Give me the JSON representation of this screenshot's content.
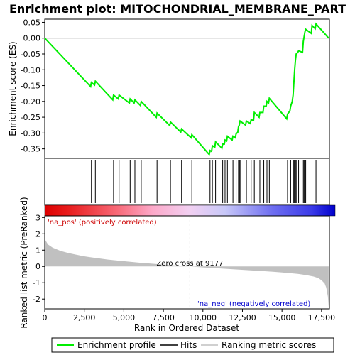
{
  "chart_data": {
    "type": "line",
    "title": "Enrichment plot: MITOCHONDRIAL_MEMBRANE_PART",
    "xlabel": "Rank in Ordered Dataset",
    "top_panel": {
      "ylabel": "Enrichment score (ES)",
      "ylim": [
        -0.38,
        0.06
      ],
      "yticks": [
        0.05,
        0.0,
        -0.05,
        -0.1,
        -0.15,
        -0.2,
        -0.25,
        -0.3,
        -0.35
      ],
      "ytick_labels": [
        "0.05",
        "0.00",
        "-0.05",
        "-0.10",
        "-0.15",
        "-0.20",
        "-0.25",
        "-0.30",
        "-0.35"
      ],
      "series": [
        {
          "name": "Enrichment profile",
          "color": "#00ee00",
          "x": [
            0,
            2900,
            2950,
            3150,
            3200,
            4300,
            4350,
            4650,
            4700,
            5350,
            5400,
            5650,
            5700,
            6050,
            6100,
            7050,
            7100,
            7900,
            7950,
            8600,
            8650,
            9250,
            9300,
            10400,
            10450,
            10550,
            10600,
            10750,
            10800,
            11200,
            11250,
            11350,
            11400,
            11500,
            11550,
            11850,
            11900,
            12050,
            12100,
            12200,
            12250,
            12300,
            12350,
            12700,
            12750,
            13000,
            13050,
            13200,
            13250,
            13550,
            13600,
            13800,
            13850,
            14000,
            14050,
            14150,
            14200,
            15300,
            15350,
            15500,
            15550,
            15650,
            15700,
            15750,
            15800,
            15850,
            15900,
            16000,
            16050,
            16300,
            16350,
            16450,
            16500,
            16850,
            16900,
            17100,
            17150,
            17950
          ],
          "y": [
            0.0,
            -0.153,
            -0.14,
            -0.148,
            -0.136,
            -0.195,
            -0.18,
            -0.192,
            -0.18,
            -0.205,
            -0.192,
            -0.205,
            -0.195,
            -0.213,
            -0.2,
            -0.25,
            -0.237,
            -0.276,
            -0.265,
            -0.297,
            -0.287,
            -0.315,
            -0.305,
            -0.368,
            -0.355,
            -0.358,
            -0.34,
            -0.345,
            -0.328,
            -0.348,
            -0.335,
            -0.335,
            -0.322,
            -0.325,
            -0.31,
            -0.322,
            -0.31,
            -0.315,
            -0.302,
            -0.298,
            -0.28,
            -0.275,
            -0.262,
            -0.275,
            -0.262,
            -0.27,
            -0.258,
            -0.26,
            -0.235,
            -0.25,
            -0.235,
            -0.235,
            -0.215,
            -0.215,
            -0.2,
            -0.205,
            -0.19,
            -0.255,
            -0.24,
            -0.23,
            -0.215,
            -0.2,
            -0.18,
            -0.14,
            -0.1,
            -0.07,
            -0.05,
            -0.045,
            -0.04,
            -0.045,
            -0.01,
            0.02,
            0.028,
            0.015,
            0.04,
            0.03,
            0.045,
            0.0
          ]
        }
      ]
    },
    "hits": [
      2950,
      3200,
      4350,
      4700,
      5400,
      5700,
      6100,
      7100,
      7950,
      8650,
      9300,
      10450,
      10600,
      10800,
      11250,
      11400,
      11550,
      11900,
      12100,
      12250,
      12300,
      12350,
      12750,
      13050,
      13250,
      13600,
      13850,
      14050,
      14200,
      15350,
      15550,
      15700,
      15750,
      15800,
      15850,
      15900,
      16050,
      16350,
      16400,
      16500,
      16900,
      17150
    ],
    "bottom_panel": {
      "ylabel": "Ranked list metric (PreRanked)",
      "ylim": [
        -2.6,
        3.1
      ],
      "yticks": [
        3,
        2,
        1,
        0,
        -1,
        -2
      ],
      "ytick_labels": [
        "3",
        "2",
        "1",
        "0",
        "-1",
        "-2"
      ],
      "series": [
        {
          "name": "Ranking metric scores",
          "color": "#c0c0c0",
          "x": [
            0,
            50,
            200,
            500,
            1000,
            1500,
            2000,
            2500,
            3000,
            4000,
            5000,
            6000,
            7000,
            8000,
            9177,
            10000,
            11000,
            12000,
            13000,
            14000,
            15000,
            15500,
            16000,
            16500,
            17000,
            17300,
            17500,
            17700,
            17800,
            17900,
            17950
          ],
          "y": [
            1.95,
            1.6,
            1.35,
            1.15,
            0.95,
            0.82,
            0.72,
            0.62,
            0.55,
            0.42,
            0.32,
            0.23,
            0.15,
            0.08,
            0.0,
            -0.06,
            -0.12,
            -0.18,
            -0.24,
            -0.3,
            -0.37,
            -0.41,
            -0.46,
            -0.53,
            -0.62,
            -0.72,
            -0.85,
            -1.05,
            -1.3,
            -1.85,
            -2.5
          ]
        }
      ],
      "zero_cross_label": "Zero cross at 9177",
      "zero_cross": 9177,
      "pos_label": "'na_pos' (positively correlated)",
      "neg_label": "'na_neg' (negatively correlated)"
    },
    "xlim": [
      0,
      18000
    ],
    "xticks": [
      0,
      2500,
      5000,
      7500,
      10000,
      12500,
      15000,
      17500
    ],
    "xtick_labels": [
      "0",
      "2,500",
      "5,000",
      "7,500",
      "10,000",
      "12,500",
      "15,000",
      "17,500"
    ],
    "legend": {
      "placement": "bottom",
      "items": [
        {
          "label": "Enrichment profile",
          "color": "#00ee00"
        },
        {
          "label": "Hits",
          "color": "#000000"
        },
        {
          "label": "Ranking metric scores",
          "color": "#c0c0c0"
        }
      ]
    },
    "colors": {
      "positive": "#dd0000",
      "negative": "#0000dd",
      "background": "#ffffff"
    }
  }
}
